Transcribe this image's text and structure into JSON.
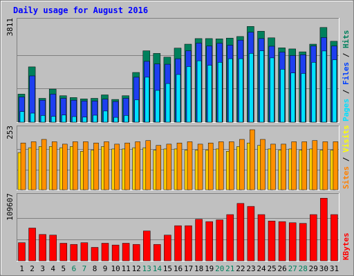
{
  "chart_data": [
    {
      "type": "bar",
      "title": "Daily usage for August 2016",
      "ylim": [
        0,
        3811
      ],
      "max_label": "3811",
      "categories": [
        "1",
        "2",
        "3",
        "4",
        "5",
        "6",
        "7",
        "8",
        "9",
        "10",
        "11",
        "12",
        "13",
        "14",
        "15",
        "16",
        "17",
        "18",
        "19",
        "20",
        "21",
        "22",
        "23",
        "24",
        "25",
        "26",
        "27",
        "28",
        "29",
        "30",
        "31"
      ],
      "weekend_days": [
        "6",
        "7",
        "13",
        "14",
        "20",
        "21",
        "27",
        "28"
      ],
      "legend": [
        {
          "text": "Hits",
          "color": "#00805c"
        },
        {
          "text": "Files",
          "color": "#0040ff"
        },
        {
          "text": "Pages",
          "color": "#00e0ff"
        }
      ],
      "legend_separator": "/",
      "series": [
        {
          "name": "Hits",
          "color": "#00805c",
          "values": [
            1060,
            2090,
            900,
            1250,
            1000,
            930,
            880,
            900,
            1030,
            860,
            1000,
            1880,
            2700,
            2600,
            2460,
            2800,
            2950,
            3160,
            3160,
            3150,
            3180,
            3240,
            3620,
            3440,
            3190,
            2810,
            2770,
            2660,
            2950,
            3580,
            3060
          ]
        },
        {
          "name": "Files",
          "color": "#1e3ff0",
          "values": [
            950,
            1750,
            830,
            1060,
            900,
            830,
            800,
            800,
            870,
            780,
            900,
            1700,
            2300,
            2200,
            2190,
            2400,
            2700,
            2990,
            2880,
            2980,
            2910,
            3100,
            3400,
            3160,
            2870,
            2650,
            2520,
            2550,
            2880,
            3200,
            2880
          ]
        },
        {
          "name": "Pages",
          "color": "#00e0ff",
          "values": [
            400,
            340,
            250,
            220,
            270,
            210,
            190,
            260,
            420,
            180,
            250,
            840,
            1700,
            1200,
            1460,
            1800,
            2100,
            2320,
            2150,
            2260,
            2400,
            2400,
            2600,
            2700,
            2430,
            2000,
            1860,
            1840,
            2260,
            2690,
            2360
          ]
        }
      ]
    },
    {
      "type": "bar",
      "ylim": [
        0,
        253
      ],
      "max_label": "253",
      "categories": [
        "1",
        "2",
        "3",
        "4",
        "5",
        "6",
        "7",
        "8",
        "9",
        "10",
        "11",
        "12",
        "13",
        "14",
        "15",
        "16",
        "17",
        "18",
        "19",
        "20",
        "21",
        "22",
        "23",
        "24",
        "25",
        "26",
        "27",
        "28",
        "29",
        "30",
        "31"
      ],
      "legend": [
        {
          "text": "Visits",
          "color": "#ffff00"
        },
        {
          "text": "Sites",
          "color": "#ff8000"
        }
      ],
      "legend_separator": "/",
      "series": [
        {
          "name": "Visits",
          "color": "#ffd000",
          "values": [
            155,
            175,
            180,
            180,
            175,
            180,
            160,
            165,
            180,
            170,
            170,
            175,
            175,
            165,
            170,
            170,
            165,
            165,
            165,
            170,
            160,
            180,
            195,
            185,
            170,
            165,
            170,
            165,
            170,
            165,
            165
          ]
        },
        {
          "name": "Sites",
          "color": "#ff9000",
          "values": [
            195,
            200,
            210,
            200,
            190,
            200,
            200,
            195,
            200,
            190,
            195,
            200,
            205,
            185,
            190,
            195,
            200,
            190,
            195,
            200,
            200,
            210,
            250,
            210,
            190,
            190,
            200,
            200,
            205,
            200,
            200
          ]
        }
      ]
    },
    {
      "type": "bar",
      "ylim": [
        0,
        109607
      ],
      "max_label": "109607",
      "categories": [
        "1",
        "2",
        "3",
        "4",
        "5",
        "6",
        "7",
        "8",
        "9",
        "10",
        "11",
        "12",
        "13",
        "14",
        "15",
        "16",
        "17",
        "18",
        "19",
        "20",
        "21",
        "22",
        "23",
        "24",
        "25",
        "26",
        "27",
        "28",
        "29",
        "30",
        "31"
      ],
      "legend": [
        {
          "text": "KBytes",
          "color": "#ff0000"
        }
      ],
      "series": [
        {
          "name": "KBytes",
          "color": "#ff0000",
          "values": [
            31000,
            56000,
            45000,
            44000,
            30000,
            28000,
            31000,
            23000,
            30000,
            27000,
            30000,
            28000,
            51000,
            28000,
            44000,
            60000,
            60000,
            71000,
            67000,
            70000,
            79000,
            98000,
            93000,
            79000,
            68000,
            67000,
            65000,
            64000,
            79000,
            107000,
            79000
          ]
        }
      ]
    }
  ]
}
